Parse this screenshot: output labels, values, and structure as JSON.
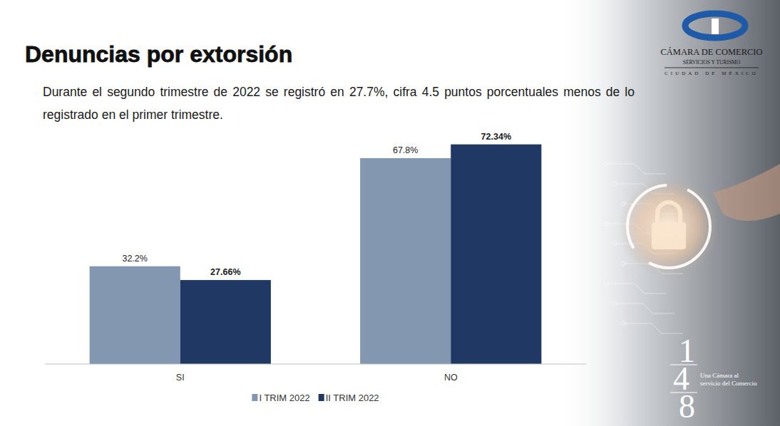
{
  "chart_data": {
    "type": "bar",
    "title": "Denuncias por extorsión",
    "subtitle": "Durante el segundo trimestre de 2022 se registró en 27.7%, cifra 4.5 puntos porcentuales menos de lo registrado en el primer trimestre.",
    "categories": [
      "SI",
      "NO"
    ],
    "series": [
      {
        "name": "I TRIM 2022",
        "color": "#8497b0",
        "values": [
          32.2,
          67.8
        ],
        "value_labels": [
          "32.2%",
          "67.8%"
        ]
      },
      {
        "name": "II TRIM 2022",
        "color": "#203864",
        "values": [
          27.66,
          72.34
        ],
        "value_labels": [
          "27.66%",
          "72.34%"
        ]
      }
    ],
    "ylim": [
      0,
      80
    ],
    "data_labels": true,
    "tick_labels": "x",
    "grid": false,
    "legend": "bottom"
  },
  "branding": {
    "name": "CÁMARA DE COMERCIO",
    "line2": "SERVICIOS Y TURISMO",
    "line3": "CIUDAD DE MÉXICO",
    "number": "148",
    "tagline": [
      "Una Cámara al",
      "servicio del Comercio"
    ]
  }
}
